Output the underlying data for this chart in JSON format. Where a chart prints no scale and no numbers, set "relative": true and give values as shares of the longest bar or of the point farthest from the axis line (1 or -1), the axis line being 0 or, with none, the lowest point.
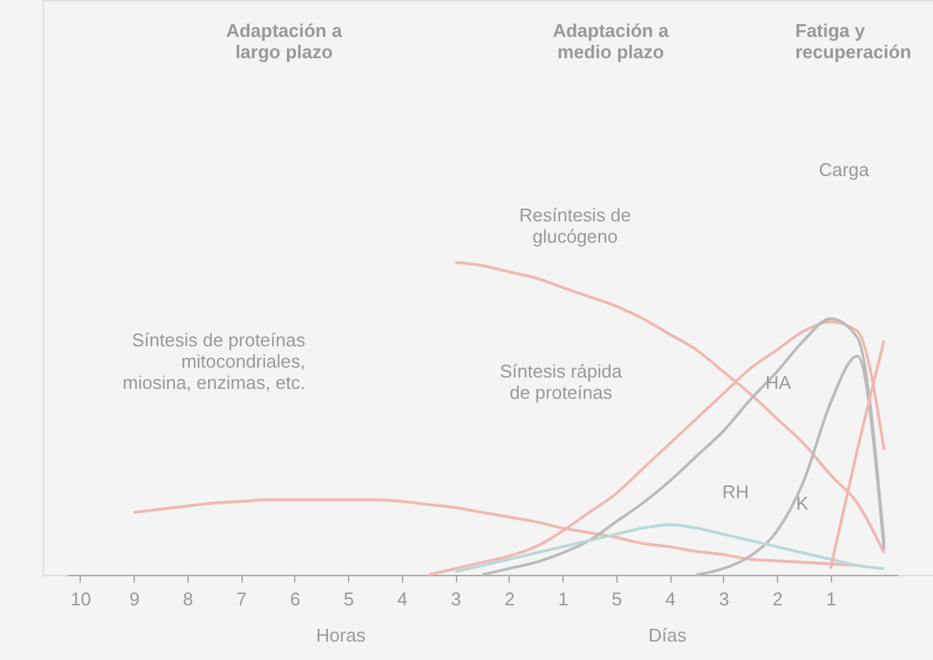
{
  "chart_data": {
    "type": "line",
    "relative": true,
    "categories": [
      "10",
      null,
      "9",
      null,
      "8",
      null,
      "7",
      null,
      "6",
      null,
      "5",
      null,
      "4",
      null,
      "3",
      null,
      "2",
      null,
      "1",
      null,
      "5",
      null,
      "4",
      null,
      "3",
      null,
      "2",
      null,
      "1",
      null,
      null
    ],
    "series": [
      {
        "color": "#f0b8b0",
        "values": [
          null,
          null,
          0.2,
          0.21,
          0.22,
          0.23,
          0.235,
          0.24,
          0.24,
          0.24,
          0.24,
          0.24,
          0.235,
          0.225,
          0.215,
          0.2,
          0.185,
          0.17,
          0.15,
          0.135,
          0.12,
          0.1,
          0.09,
          0.075,
          0.065,
          0.05,
          0.045,
          0.04,
          0.035,
          0.03,
          null
        ]
      },
      {
        "color": "#f0b8b0",
        "values": [
          null,
          null,
          null,
          null,
          null,
          null,
          null,
          null,
          null,
          null,
          null,
          null,
          null,
          null,
          1.0,
          0.99,
          0.97,
          0.95,
          0.92,
          0.89,
          0.86,
          0.82,
          0.77,
          0.72,
          0.65,
          0.58,
          0.5,
          0.42,
          0.32,
          0.23,
          0.07
        ]
      },
      {
        "color": "#f0b8b0",
        "values": [
          null,
          null,
          null,
          null,
          null,
          null,
          null,
          null,
          null,
          null,
          null,
          null,
          null,
          0,
          0.02,
          0.04,
          0.06,
          0.09,
          0.14,
          0.2,
          0.26,
          0.34,
          0.42,
          0.5,
          0.58,
          0.66,
          0.72,
          0.78,
          0.81,
          0.78,
          0.4
        ]
      },
      {
        "color": "#bbbbbb",
        "values": [
          null,
          null,
          null,
          null,
          null,
          null,
          null,
          null,
          null,
          null,
          null,
          null,
          null,
          null,
          null,
          0,
          0.02,
          0.04,
          0.07,
          0.11,
          0.17,
          0.23,
          0.3,
          0.38,
          0.46,
          0.56,
          0.65,
          0.75,
          0.82,
          0.76,
          0.1
        ]
      },
      {
        "color": "#bbbbbb",
        "values": [
          null,
          null,
          null,
          null,
          null,
          null,
          null,
          null,
          null,
          null,
          null,
          null,
          null,
          null,
          null,
          null,
          null,
          null,
          null,
          null,
          null,
          null,
          null,
          0,
          0.02,
          0.06,
          0.14,
          0.3,
          0.55,
          0.7,
          0.08
        ]
      },
      {
        "color": "#b8d8d8",
        "values": [
          null,
          null,
          null,
          null,
          null,
          null,
          null,
          null,
          null,
          null,
          null,
          null,
          null,
          null,
          0.01,
          0.03,
          0.05,
          0.07,
          0.09,
          0.11,
          0.13,
          0.15,
          0.16,
          0.15,
          0.13,
          0.11,
          0.09,
          0.07,
          0.05,
          0.03,
          0.02
        ]
      },
      {
        "color": "#f0b8b0",
        "values": [
          null,
          null,
          null,
          null,
          null,
          null,
          null,
          null,
          null,
          null,
          null,
          null,
          null,
          null,
          null,
          null,
          null,
          null,
          null,
          null,
          null,
          null,
          null,
          null,
          null,
          null,
          null,
          null,
          0.02,
          0.4,
          0.75
        ]
      }
    ],
    "annotations": [
      "Adaptación a largo plazo",
      "Adaptación a medio plazo",
      "Fatiga y recuperación",
      "Carga",
      "Resíntesis de glucógeno",
      "Síntesis rápida de proteínas",
      "Síntesis de proteínas mitocondriales, miosina, enzimas, etc.",
      "HA",
      "RH",
      "K",
      "Horas",
      "Días"
    ],
    "grid": false,
    "marker": "none",
    "line_style": "solid"
  }
}
